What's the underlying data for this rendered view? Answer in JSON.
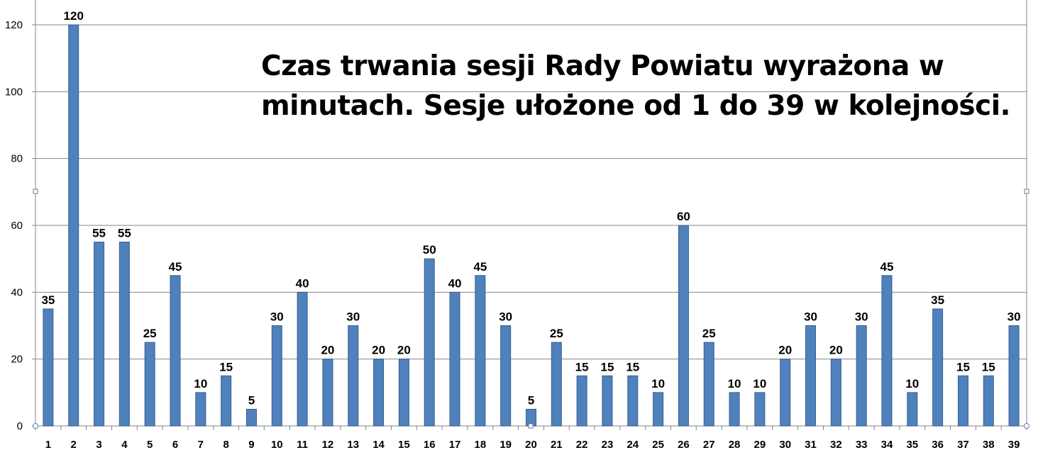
{
  "chart_data": {
    "type": "bar",
    "title_line1": "Czas trwania sesji Rady Powiatu wyrażona w",
    "title_line2": "minutach. Sesje ułożone od 1 do 39 w kolejności.",
    "xlabel": "",
    "ylabel": "",
    "categories": [
      "1",
      "2",
      "3",
      "4",
      "5",
      "6",
      "7",
      "8",
      "9",
      "10",
      "11",
      "12",
      "13",
      "14",
      "15",
      "16",
      "17",
      "18",
      "19",
      "20",
      "21",
      "22",
      "23",
      "24",
      "25",
      "26",
      "27",
      "28",
      "29",
      "30",
      "31",
      "32",
      "33",
      "34",
      "35",
      "36",
      "37",
      "38",
      "39"
    ],
    "values": [
      35,
      120,
      55,
      55,
      25,
      45,
      10,
      15,
      5,
      30,
      40,
      20,
      30,
      20,
      20,
      50,
      40,
      45,
      30,
      5,
      25,
      15,
      15,
      15,
      10,
      60,
      25,
      10,
      10,
      20,
      30,
      20,
      30,
      45,
      10,
      35,
      15,
      15,
      30
    ],
    "ylim": [
      0,
      120
    ],
    "yticks": [
      0,
      20,
      40,
      60,
      80,
      100,
      120
    ],
    "grid": true,
    "data_labels": true,
    "colors": {
      "bar": "#4f81bd",
      "bar_edge": "#385d8a",
      "grid": "#868686"
    }
  }
}
